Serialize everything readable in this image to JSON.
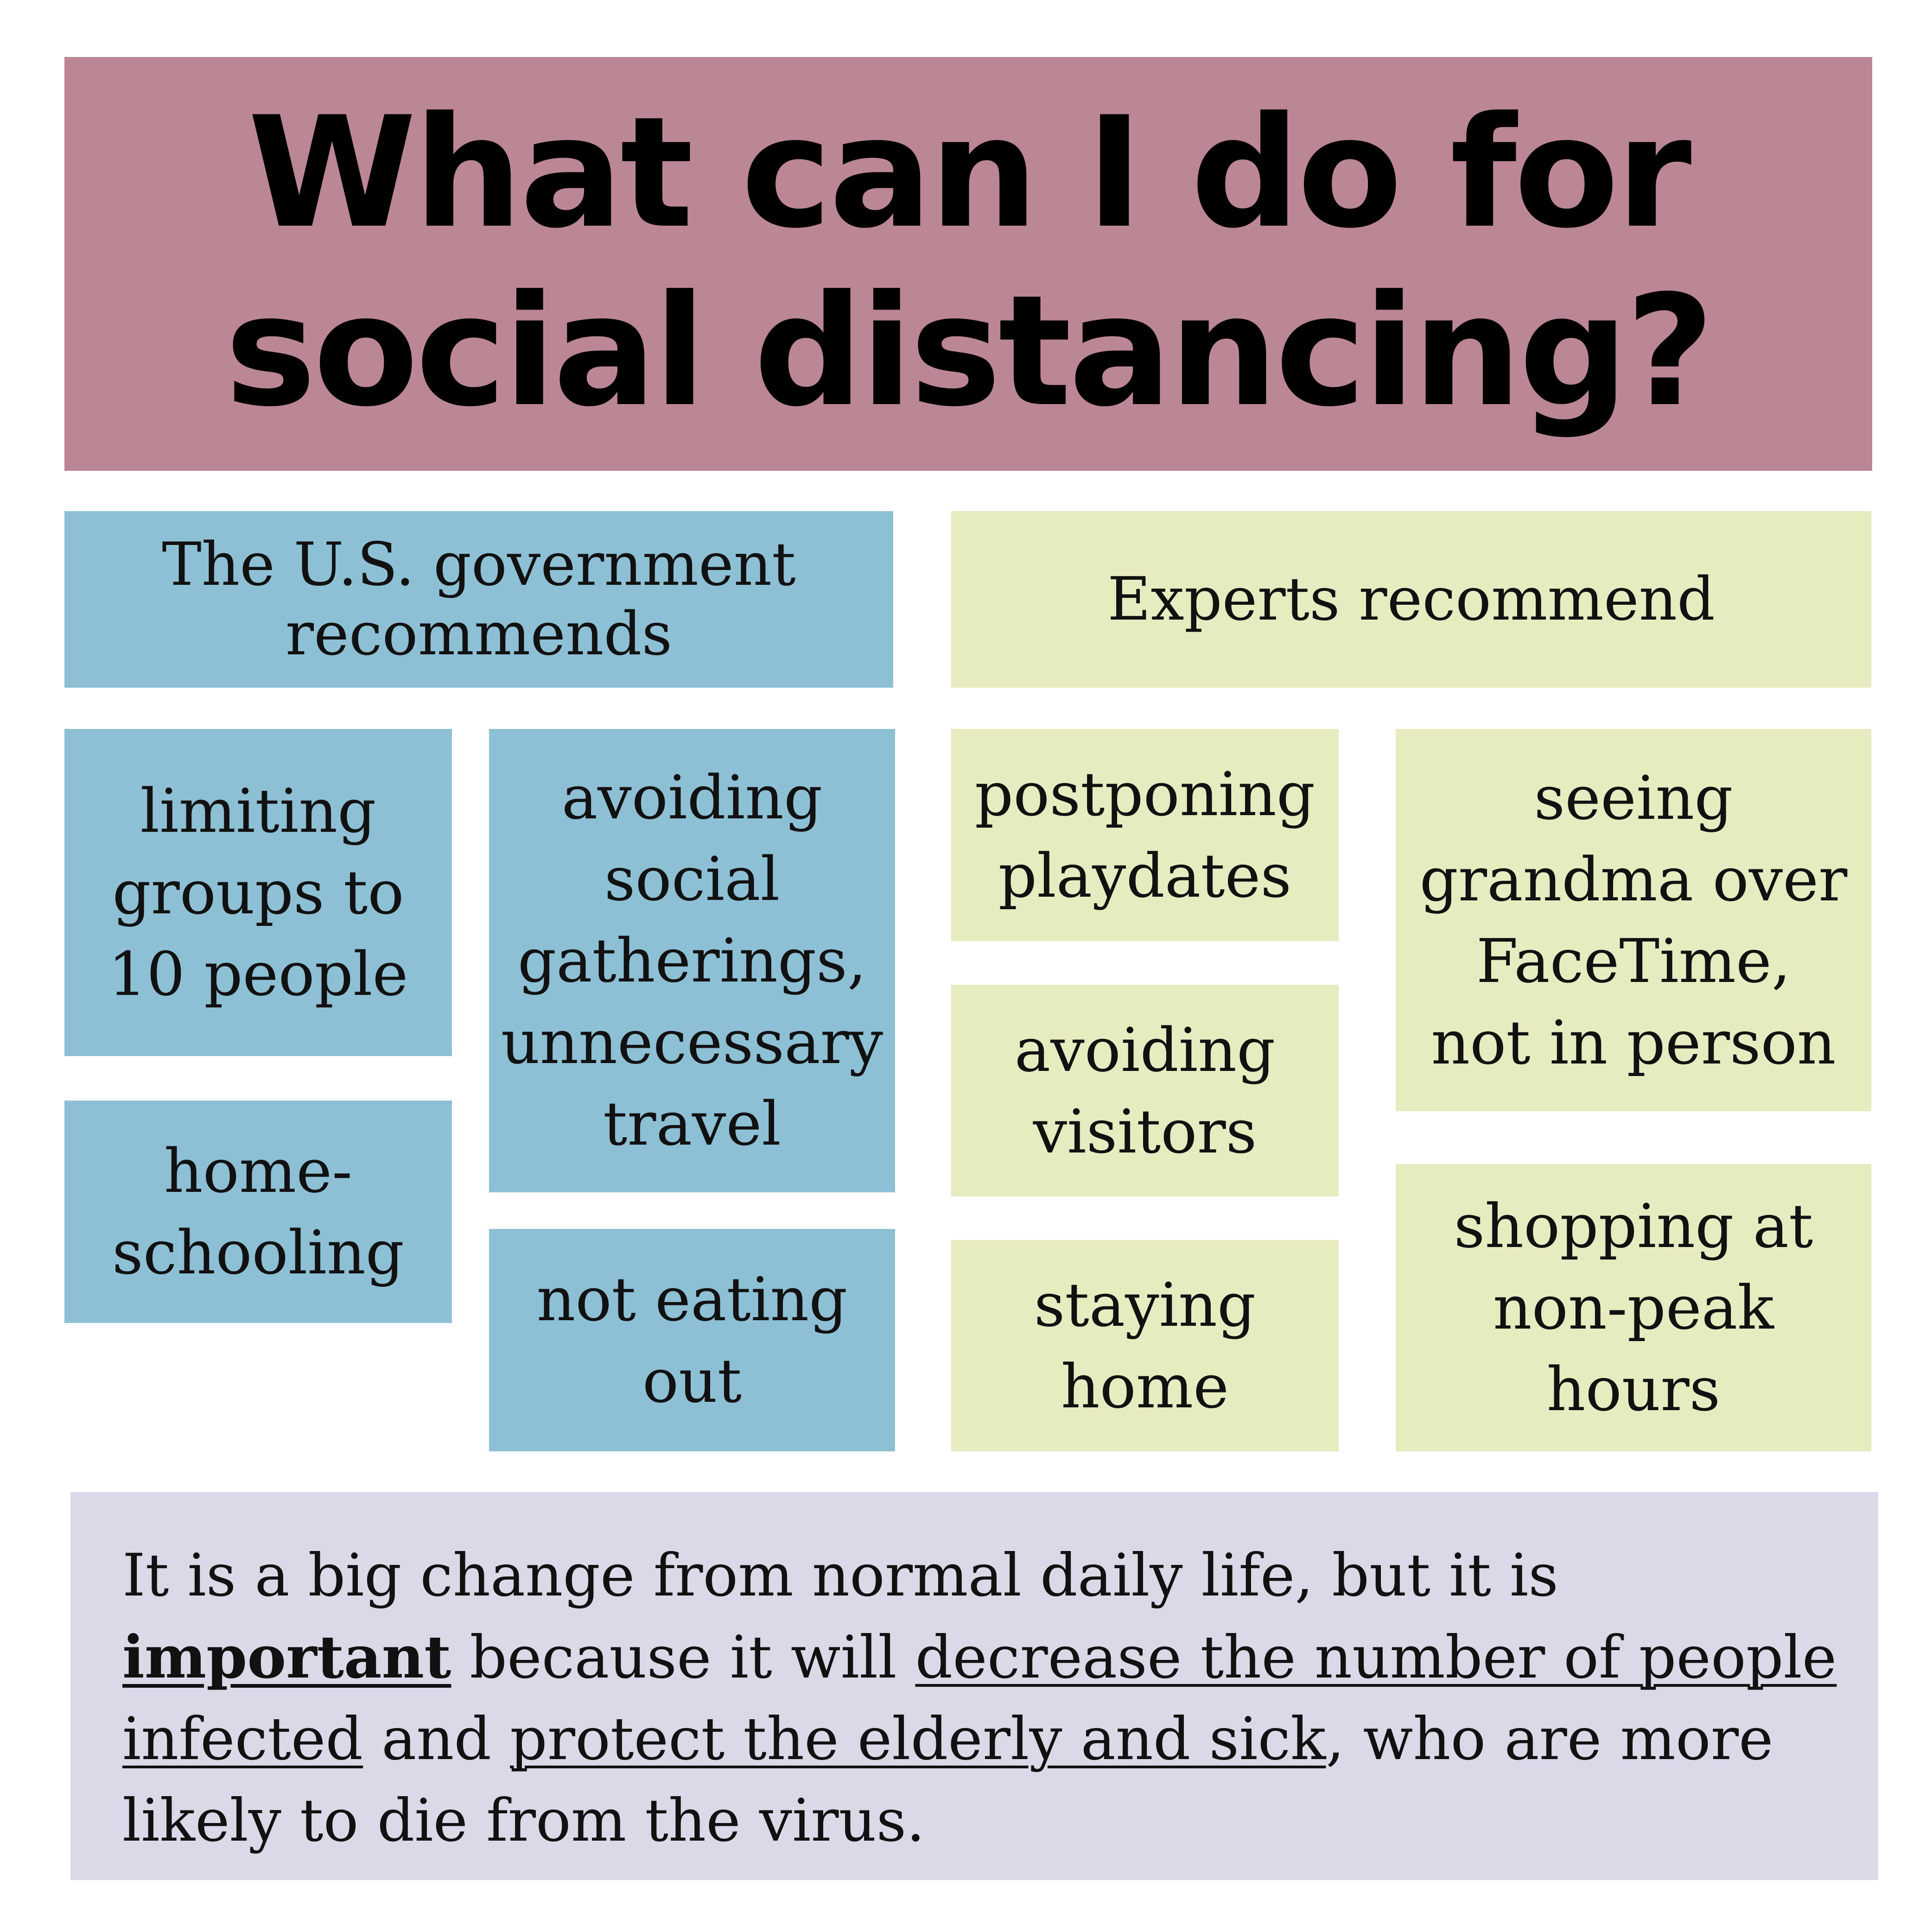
{
  "title": {
    "line1": "What can I do for",
    "line2": "social distancing?"
  },
  "government": {
    "header_line1": "The U.S. government",
    "header_line2": "recommends",
    "items": [
      {
        "lines": [
          "limiting",
          "groups to",
          "10 people"
        ]
      },
      {
        "lines": [
          "home-",
          "schooling"
        ]
      },
      {
        "lines": [
          "avoiding",
          "social",
          "gatherings,",
          "unnecessary",
          "travel"
        ]
      },
      {
        "lines": [
          "not eating",
          "out"
        ]
      }
    ]
  },
  "experts": {
    "header": "Experts recommend",
    "items": [
      {
        "lines": [
          "postponing",
          "playdates"
        ]
      },
      {
        "lines": [
          "avoiding",
          "visitors"
        ]
      },
      {
        "lines": [
          "staying",
          "home"
        ]
      },
      {
        "lines": [
          "seeing",
          "grandma over",
          "FaceTime,",
          "not in person"
        ]
      },
      {
        "lines": [
          "shopping at",
          "non-peak",
          "hours"
        ]
      }
    ]
  },
  "footer": {
    "part1": "It is a big change from normal daily life, but it is ",
    "important": "important",
    "part2": " because it will ",
    "decrease": "decrease the number of people infected",
    "part3": " and ",
    "protect": "protect the elderly and sick",
    "part4": ", who are more likely to die from the virus."
  },
  "colors": {
    "title_bg": "#bc8795",
    "government_bg": "#8dbfd5",
    "experts_bg": "#e6ecbf",
    "footer_bg": "#d9d9e8"
  }
}
